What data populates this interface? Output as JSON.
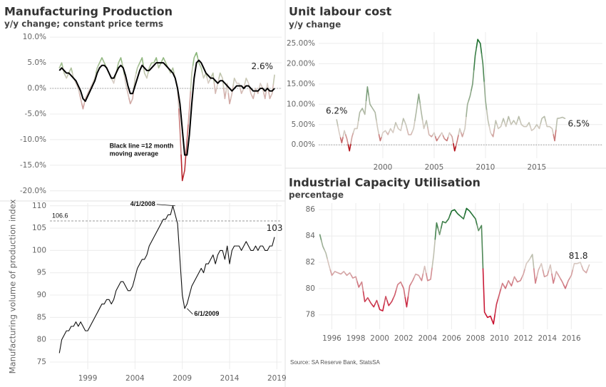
{
  "source": "Source: SA Reserve Bank, StatsSA",
  "chart_data": [
    {
      "type": "line",
      "title": "Manufacturing Production",
      "subtitle": "y/y change; constant price terms",
      "xlim": [
        1995,
        2019.5
      ],
      "ylim": [
        -21.7,
        11
      ],
      "yticks": [
        {
          "value": 10,
          "label": "10.0%"
        },
        {
          "value": 5,
          "label": "5.0%"
        },
        {
          "value": 0,
          "label": "0.0%"
        },
        {
          "value": -5,
          "label": "-5.0%"
        },
        {
          "value": -10,
          "label": "-10.0%"
        },
        {
          "value": -15,
          "label": "-15.0%"
        },
        {
          "value": -20,
          "label": "-20.0%"
        }
      ],
      "grid": true,
      "zero_line": true,
      "color_scale": {
        "colors": [
          "#b5121b",
          "#d8cdc5",
          "#5aa84a"
        ],
        "domain": [
          -20,
          1,
          10
        ]
      },
      "x": [
        1996,
        1996.25,
        1996.5,
        1996.75,
        1997,
        1997.25,
        1997.5,
        1997.75,
        1998,
        1998.25,
        1998.5,
        1998.75,
        1999,
        1999.25,
        1999.5,
        1999.75,
        2000,
        2000.25,
        2000.5,
        2000.75,
        2001,
        2001.25,
        2001.5,
        2001.75,
        2002,
        2002.25,
        2002.5,
        2002.75,
        2003,
        2003.25,
        2003.5,
        2003.75,
        2004,
        2004.25,
        2004.5,
        2004.75,
        2005,
        2005.25,
        2005.5,
        2005.75,
        2006,
        2006.25,
        2006.5,
        2006.75,
        2007,
        2007.25,
        2007.5,
        2007.75,
        2008,
        2008.25,
        2008.5,
        2008.75,
        2009,
        2009.25,
        2009.5,
        2009.75,
        2010,
        2010.25,
        2010.5,
        2010.75,
        2011,
        2011.25,
        2011.5,
        2011.75,
        2012,
        2012.25,
        2012.5,
        2012.75,
        2013,
        2013.25,
        2013.5,
        2013.75,
        2014,
        2014.25,
        2014.5,
        2014.75,
        2015,
        2015.25,
        2015.5,
        2015.75,
        2016,
        2016.25,
        2016.5,
        2016.75,
        2017,
        2017.25,
        2017.5,
        2017.75,
        2018,
        2018.25,
        2018.5,
        2018.75
      ],
      "series": [
        {
          "style": "gradient",
          "values": [
            4,
            5,
            3,
            2,
            3,
            4,
            2,
            1,
            0,
            -2,
            -4,
            -2,
            -1,
            0,
            1,
            2,
            4,
            5,
            6,
            5,
            4,
            3,
            2,
            1,
            3,
            5,
            6,
            4,
            1,
            -1,
            -3,
            -2,
            2,
            4,
            5,
            6,
            3,
            2,
            4,
            5,
            5,
            6,
            4,
            5,
            6,
            5,
            4,
            3,
            4,
            2,
            0,
            -8,
            -18,
            -16,
            -10,
            -4,
            3,
            6,
            7,
            5,
            4,
            2,
            3,
            1,
            2,
            3,
            -1,
            1,
            3,
            2,
            -2,
            1,
            -3,
            -1,
            2,
            1,
            1,
            -1,
            0,
            2,
            1,
            -1,
            -2,
            0,
            -1,
            1,
            0,
            -2,
            1,
            -2,
            -1,
            2.6
          ],
          "point_labels": [
            {
              "index": 91,
              "label": "2.6%",
              "anchor": "end"
            }
          ]
        },
        {
          "style": "solid",
          "color": "#000000",
          "values": [
            3.5,
            4,
            3.5,
            3,
            3,
            2.5,
            2,
            1.5,
            0.5,
            -0.5,
            -2,
            -2.5,
            -1.5,
            -0.5,
            0.5,
            1.5,
            3,
            4,
            4.5,
            4.5,
            4,
            3,
            2,
            2,
            3,
            4,
            4.5,
            4,
            2.5,
            0.5,
            -1,
            -1,
            0.5,
            2,
            3.5,
            4.5,
            4,
            3.5,
            3.5,
            4,
            4.5,
            5,
            5,
            5,
            5,
            4.5,
            4,
            3.5,
            3,
            2,
            0,
            -3,
            -8,
            -13,
            -13,
            -9,
            -3,
            2,
            5,
            5.5,
            5,
            4,
            3,
            2.5,
            2,
            2,
            1.5,
            1,
            1.5,
            1.5,
            1,
            0.5,
            0,
            -0.5,
            0,
            0.5,
            0.5,
            0.5,
            0,
            0.5,
            0.5,
            0,
            -0.5,
            -0.5,
            -0.5,
            0,
            0,
            -0.5,
            0,
            -0.5,
            -0.5,
            0
          ]
        }
      ],
      "annotations": [
        {
          "lines": [
            "Black line =12 month",
            "moving average"
          ],
          "x": 2001.3,
          "y": -11.3,
          "anchor": "start"
        }
      ]
    },
    {
      "type": "line",
      "ylabel": "Manufacturing volume of production index",
      "xlim": [
        1995,
        2019.5
      ],
      "ylim": [
        73.4,
        110.6
      ],
      "xticks": [
        1999,
        2004,
        2009,
        2014,
        2019
      ],
      "yticks": [
        75,
        80,
        85,
        90,
        95,
        100,
        105,
        110
      ],
      "grid": true,
      "reference_line": {
        "value": 106.6,
        "label": "106.6"
      },
      "x": [
        1996,
        1996.25,
        1996.5,
        1996.75,
        1997,
        1997.25,
        1997.5,
        1997.75,
        1998,
        1998.25,
        1998.5,
        1998.75,
        1999,
        1999.25,
        1999.5,
        1999.75,
        2000,
        2000.25,
        2000.5,
        2000.75,
        2001,
        2001.25,
        2001.5,
        2001.75,
        2002,
        2002.25,
        2002.5,
        2002.75,
        2003,
        2003.25,
        2003.5,
        2003.75,
        2004,
        2004.25,
        2004.5,
        2004.75,
        2005,
        2005.25,
        2005.5,
        2005.75,
        2006,
        2006.25,
        2006.5,
        2006.75,
        2007,
        2007.25,
        2007.5,
        2007.75,
        2008,
        2008.25,
        2008.5,
        2008.75,
        2009,
        2009.25,
        2009.5,
        2009.75,
        2010,
        2010.25,
        2010.5,
        2010.75,
        2011,
        2011.25,
        2011.5,
        2011.75,
        2012,
        2012.25,
        2012.5,
        2012.75,
        2013,
        2013.25,
        2013.5,
        2013.75,
        2014,
        2014.25,
        2014.5,
        2014.75,
        2015,
        2015.25,
        2015.5,
        2015.75,
        2016,
        2016.25,
        2016.5,
        2016.75,
        2017,
        2017.25,
        2017.5,
        2017.75,
        2018,
        2018.25,
        2018.5,
        2018.75
      ],
      "series": [
        {
          "style": "solid",
          "color": "#111111",
          "values": [
            77,
            80,
            81,
            82,
            82,
            83,
            83,
            84,
            83,
            84,
            83,
            82,
            82,
            83,
            84,
            85,
            86,
            87,
            88,
            88,
            89,
            89,
            88,
            89,
            91,
            92,
            93,
            93,
            92,
            91,
            91,
            92,
            94,
            96,
            97,
            98,
            98,
            99,
            101,
            102,
            103,
            104,
            105,
            106,
            107,
            107,
            108,
            108,
            110,
            108,
            106,
            98,
            90,
            87,
            88,
            90,
            92,
            93,
            94,
            95,
            96,
            95,
            97,
            97,
            98,
            99,
            97,
            99,
            100,
            100,
            98,
            101,
            97,
            100,
            101,
            101,
            101,
            100,
            101,
            102,
            101,
            100,
            100,
            101,
            100,
            101,
            101,
            100,
            100,
            101,
            101,
            103
          ],
          "point_labels": [
            {
              "index": 91,
              "label": "103",
              "anchor": "middle"
            }
          ]
        }
      ],
      "annotations": [
        {
          "lines": [
            "4/1/2008"
          ],
          "x": 2008.25,
          "y": 110,
          "anchor": "end"
        },
        {
          "lines": [
            "6/1/2009"
          ],
          "x": 2009.5,
          "y": 87,
          "anchor": "start"
        }
      ]
    },
    {
      "type": "line",
      "title": "Unit labour cost",
      "subtitle": "y/y change",
      "xlim": [
        1993.75,
        2021.4
      ],
      "ylim": [
        -3.3,
        27.8
      ],
      "xticks": [
        2000,
        2005,
        2010,
        2015
      ],
      "yticks": [
        {
          "value": 0,
          "label": "0.00%"
        },
        {
          "value": 5,
          "label": "5.00%"
        },
        {
          "value": 10,
          "label": "10.00%"
        },
        {
          "value": 15,
          "label": "15.00%"
        },
        {
          "value": 20,
          "label": "20.00%"
        },
        {
          "value": 25,
          "label": "25.00%"
        }
      ],
      "grid": true,
      "zero_line": true,
      "color_scale": {
        "colors": [
          "#b5121b",
          "#d8cdc5",
          "#1a6e2c"
        ],
        "domain": [
          -1.5,
          3,
          26
        ]
      },
      "x": [
        1995.5,
        1995.75,
        1996,
        1996.25,
        1996.5,
        1996.75,
        1997,
        1997.25,
        1997.5,
        1997.75,
        1998,
        1998.25,
        1998.5,
        1998.75,
        1999,
        1999.25,
        1999.5,
        1999.75,
        2000,
        2000.25,
        2000.5,
        2000.75,
        2001,
        2001.25,
        2001.5,
        2001.75,
        2002,
        2002.25,
        2002.5,
        2002.75,
        2003,
        2003.25,
        2003.5,
        2003.75,
        2004,
        2004.25,
        2004.5,
        2004.75,
        2005,
        2005.25,
        2005.5,
        2005.75,
        2006,
        2006.25,
        2006.5,
        2006.75,
        2007,
        2007.25,
        2007.5,
        2007.75,
        2008,
        2008.25,
        2008.5,
        2008.75,
        2009,
        2009.25,
        2009.5,
        2009.75,
        2010,
        2010.25,
        2010.5,
        2010.75,
        2011,
        2011.25,
        2011.5,
        2011.75,
        2012,
        2012.25,
        2012.5,
        2012.75,
        2013,
        2013.25,
        2013.5,
        2013.75,
        2014,
        2014.25,
        2014.5,
        2014.75,
        2015,
        2015.25,
        2015.5,
        2015.75,
        2016,
        2016.25,
        2016.5,
        2016.75,
        2017,
        2017.25,
        2017.5,
        2017.75
      ],
      "series": [
        {
          "style": "gradient",
          "values": [
            6.2,
            3,
            0.5,
            3.5,
            1.5,
            -1.5,
            2,
            4,
            4,
            8,
            9,
            7.5,
            14.3,
            10,
            9,
            8,
            4,
            1,
            3,
            3.5,
            2.5,
            4,
            3,
            5.5,
            4,
            3.5,
            6.5,
            5,
            2.5,
            2.5,
            4,
            8,
            12.5,
            8,
            4,
            6,
            2.5,
            2,
            3,
            1,
            2,
            3,
            1.5,
            1,
            3,
            2,
            -1.5,
            1,
            4,
            2,
            4,
            10,
            12,
            15,
            22,
            26,
            25,
            20,
            11,
            6,
            3,
            2,
            6,
            4,
            4.5,
            6.5,
            4.5,
            7,
            5,
            6,
            5,
            7,
            5,
            4.5,
            4.5,
            5.5,
            3.5,
            4,
            5,
            4,
            6.5,
            7,
            4.5,
            4.5,
            4,
            1,
            6.5,
            6.6,
            6.8,
            6.5
          ],
          "point_labels": [
            {
              "index": 0,
              "label": "6.2%",
              "anchor": "middle"
            },
            {
              "index": 89,
              "label": "6.5%",
              "anchor": "start"
            }
          ]
        }
      ]
    },
    {
      "type": "line",
      "title": "Industrial Capacity Utilisation",
      "subtitle": "percentage",
      "xlim": [
        1994.9,
        2018.6
      ],
      "ylim": [
        76.9,
        86.5
      ],
      "xticks": [
        1996,
        1998,
        2000,
        2002,
        2004,
        2006,
        2008,
        2010,
        2012,
        2014,
        2016
      ],
      "yticks": [
        78,
        80,
        82,
        84,
        86
      ],
      "grid": true,
      "color_scale": {
        "colors": [
          "#c8102e",
          "#d8cdc5",
          "#146a28"
        ],
        "domain": [
          78,
          82,
          86
        ]
      },
      "x": [
        1995,
        1995.25,
        1995.5,
        1995.75,
        1996,
        1996.25,
        1996.5,
        1996.75,
        1997,
        1997.25,
        1997.5,
        1997.75,
        1998,
        1998.25,
        1998.5,
        1998.75,
        1999,
        1999.25,
        1999.5,
        1999.75,
        2000,
        2000.25,
        2000.5,
        2000.75,
        2001,
        2001.25,
        2001.5,
        2001.75,
        2002,
        2002.25,
        2002.5,
        2002.75,
        2003,
        2003.25,
        2003.5,
        2003.75,
        2004,
        2004.25,
        2004.5,
        2004.75,
        2005,
        2005.25,
        2005.5,
        2005.75,
        2006,
        2006.25,
        2006.5,
        2006.75,
        2007,
        2007.25,
        2007.5,
        2007.75,
        2008,
        2008.25,
        2008.5,
        2008.75,
        2009,
        2009.25,
        2009.5,
        2009.75,
        2010,
        2010.25,
        2010.5,
        2010.75,
        2011,
        2011.25,
        2011.5,
        2011.75,
        2012,
        2012.25,
        2012.5,
        2012.75,
        2013,
        2013.25,
        2013.5,
        2013.75,
        2014,
        2014.25,
        2014.5,
        2014.75,
        2015,
        2015.25,
        2015.5,
        2015.75,
        2016,
        2016.25,
        2016.5,
        2016.75,
        2017,
        2017.25,
        2017.5
      ],
      "series": [
        {
          "style": "gradient",
          "values": [
            84.1,
            83.2,
            82.7,
            81.8,
            81.0,
            81.3,
            81.2,
            81.1,
            81.3,
            81.0,
            81.2,
            80.8,
            80.9,
            80.1,
            80.5,
            79.0,
            79.3,
            78.9,
            78.6,
            79.1,
            78.4,
            78.3,
            79.4,
            78.7,
            79.0,
            79.5,
            80.3,
            80.5,
            80.0,
            78.6,
            80.2,
            80.6,
            81.1,
            81.0,
            80.6,
            81.7,
            80.6,
            80.7,
            82.5,
            85.0,
            84.1,
            85.1,
            85.0,
            85.3,
            85.9,
            86.0,
            85.7,
            85.5,
            85.3,
            86.1,
            85.9,
            85.6,
            85.3,
            84.4,
            84.8,
            78.2,
            77.8,
            77.9,
            77.3,
            78.8,
            79.6,
            80.4,
            80.0,
            80.6,
            80.2,
            80.9,
            80.5,
            80.6,
            81.1,
            81.9,
            82.2,
            82.6,
            80.4,
            81.4,
            81.9,
            80.9,
            81.0,
            81.8,
            80.4,
            81.3,
            80.9,
            80.5,
            80.0,
            80.6,
            81.0,
            81.9,
            81.9,
            82.0,
            81.4,
            81.2,
            81.8
          ],
          "point_labels": [
            {
              "index": 90,
              "label": "81.8",
              "anchor": "end"
            }
          ]
        }
      ]
    }
  ]
}
